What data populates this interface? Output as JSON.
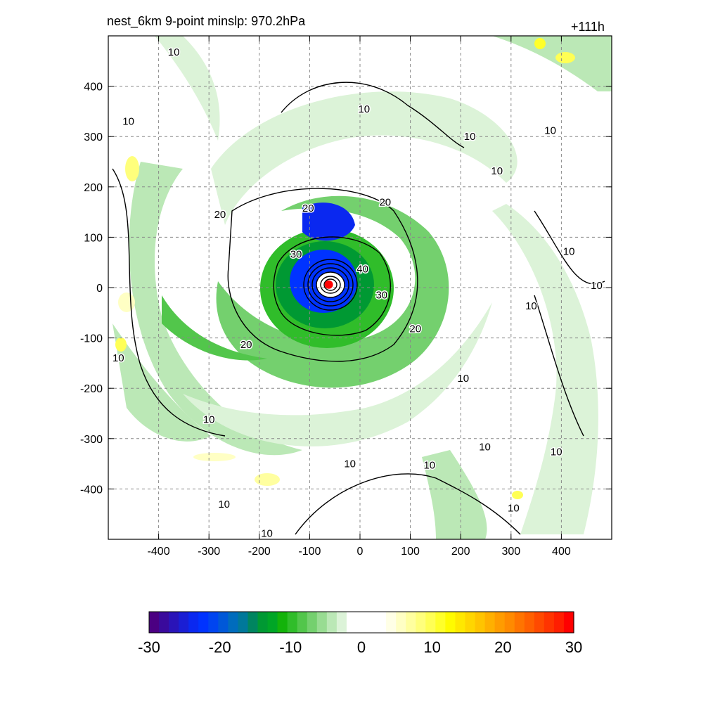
{
  "chart_data": {
    "type": "heatmap",
    "title": "nest_6km  9-point minslp: 970.2hPa",
    "time_label": "+111h",
    "xlim": [
      -500,
      500
    ],
    "ylim": [
      -500,
      500
    ],
    "x_ticks": [
      -400,
      -300,
      -200,
      -100,
      0,
      100,
      200,
      300,
      400
    ],
    "y_ticks": [
      -400,
      -300,
      -200,
      -100,
      0,
      100,
      200,
      300,
      400
    ],
    "grid": true,
    "center": [
      -62,
      6
    ],
    "center_color": "#ff0000",
    "colorbar": {
      "min": -30,
      "max": 30,
      "ticks": [
        -30,
        -20,
        -10,
        0,
        10,
        20,
        30
      ],
      "colors": [
        "#4b0082",
        "#3a0a9c",
        "#2a14b8",
        "#1a1ed4",
        "#0a28f0",
        "#0033ff",
        "#0045f0",
        "#0058d8",
        "#006cbd",
        "#00789a",
        "#008560",
        "#009933",
        "#00a626",
        "#13b30a",
        "#30bd2a",
        "#52c64b",
        "#74d06e",
        "#98dc92",
        "#bbe8b6",
        "#dcf3d8",
        "#ffffff",
        "#ffffff",
        "#ffffff",
        "#ffffff",
        "#ffffe6",
        "#ffffc4",
        "#ffffa0",
        "#ffff7c",
        "#ffff55",
        "#ffff2a",
        "#fffb00",
        "#ffe800",
        "#ffd600",
        "#ffc400",
        "#ffb000",
        "#ff9c00",
        "#ff8a00",
        "#ff7400",
        "#ff6000",
        "#ff4a00",
        "#ff3400",
        "#ff1e00",
        "#ff0000"
      ]
    },
    "contour_labels": [
      {
        "text": "10",
        "x": -370,
        "y": 468
      },
      {
        "text": "10",
        "x": -460,
        "y": 330
      },
      {
        "text": "10",
        "x": 8,
        "y": 355
      },
      {
        "text": "10",
        "x": 218,
        "y": 300
      },
      {
        "text": "10",
        "x": 272,
        "y": 232
      },
      {
        "text": "10",
        "x": 378,
        "y": 312
      },
      {
        "text": "10",
        "x": 415,
        "y": 72
      },
      {
        "text": "10",
        "x": 470,
        "y": 4
      },
      {
        "text": "10",
        "x": 340,
        "y": -36
      },
      {
        "text": "10",
        "x": 205,
        "y": -180
      },
      {
        "text": "10",
        "x": -300,
        "y": -262
      },
      {
        "text": "10",
        "x": -20,
        "y": -350
      },
      {
        "text": "10",
        "x": 138,
        "y": -353
      },
      {
        "text": "10",
        "x": 248,
        "y": -316
      },
      {
        "text": "10",
        "x": 390,
        "y": -326
      },
      {
        "text": "10",
        "x": 305,
        "y": -438
      },
      {
        "text": "10",
        "x": -270,
        "y": -430
      },
      {
        "text": "10",
        "x": -185,
        "y": -488
      },
      {
        "text": "10",
        "x": -480,
        "y": -140
      },
      {
        "text": "20",
        "x": -278,
        "y": 145
      },
      {
        "text": "20",
        "x": -103,
        "y": 158
      },
      {
        "text": "20",
        "x": 50,
        "y": 170
      },
      {
        "text": "20",
        "x": -226,
        "y": -113
      },
      {
        "text": "20",
        "x": 110,
        "y": -82
      },
      {
        "text": "30",
        "x": -127,
        "y": 66
      },
      {
        "text": "30",
        "x": 43,
        "y": -15
      },
      {
        "text": "40",
        "x": 5,
        "y": 37
      }
    ]
  }
}
